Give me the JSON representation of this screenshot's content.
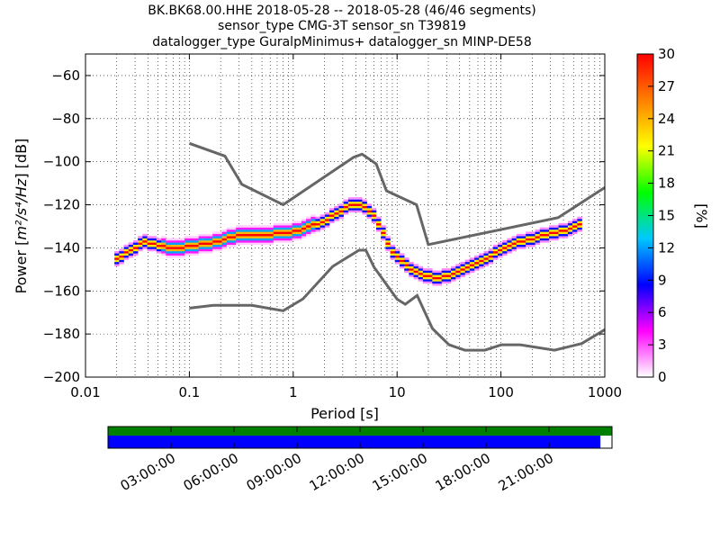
{
  "chart_data": {
    "type": "heatmap",
    "title_lines": [
      "BK.BK68.00.HHE   2018-05-28 -- 2018-05-28  (46/46 segments)",
      "sensor_type CMG-3T sensor_sn T39819",
      "datalogger_type GuralpMinimus+ datalogger_sn MINP-DE58"
    ],
    "xlabel_prefix": "Period [s]",
    "ylabel_prefix": "Power [",
    "ylabel_math": "m²/s⁴/Hz",
    "ylabel_suffix": "] [dB]",
    "x_scale": "log",
    "xlim": [
      0.01,
      1000
    ],
    "ylim": [
      -200,
      -50
    ],
    "x_ticks": [
      {
        "value": 0.01,
        "label": "0.01"
      },
      {
        "value": 0.1,
        "label": "0.1"
      },
      {
        "value": 1,
        "label": "1"
      },
      {
        "value": 10,
        "label": "10"
      },
      {
        "value": 100,
        "label": "100"
      },
      {
        "value": 1000,
        "label": "1000"
      }
    ],
    "y_ticks": [
      {
        "value": -60,
        "label": "−60"
      },
      {
        "value": -80,
        "label": "−80"
      },
      {
        "value": -100,
        "label": "−100"
      },
      {
        "value": -120,
        "label": "−120"
      },
      {
        "value": -140,
        "label": "−140"
      },
      {
        "value": -160,
        "label": "−160"
      },
      {
        "value": -180,
        "label": "−180"
      },
      {
        "value": -200,
        "label": "−200"
      }
    ],
    "grid": true,
    "colorbar": {
      "label": "[%]",
      "range": [
        0,
        30
      ],
      "ticks": [
        {
          "value": 0,
          "label": "0"
        },
        {
          "value": 3,
          "label": "3"
        },
        {
          "value": 6,
          "label": "6"
        },
        {
          "value": 9,
          "label": "9"
        },
        {
          "value": 12,
          "label": "12"
        },
        {
          "value": 15,
          "label": "15"
        },
        {
          "value": 18,
          "label": "18"
        },
        {
          "value": 21,
          "label": "21"
        },
        {
          "value": 24,
          "label": "24"
        },
        {
          "value": 27,
          "label": "27"
        },
        {
          "value": 30,
          "label": "30"
        }
      ],
      "colors": [
        "#ffffff",
        "#ff00ff",
        "#0000ff",
        "#00c8ff",
        "#00ff00",
        "#ffff00",
        "#ff8000",
        "#ff0000"
      ]
    },
    "nhnm": {
      "period": [
        0.1,
        0.22,
        0.32,
        0.8,
        3.8,
        4.6,
        6.3,
        7.9,
        15.4,
        20,
        354.8,
        1000
      ],
      "power": [
        -91.5,
        -97.4,
        -110.5,
        -120,
        -98,
        -96.5,
        -101,
        -113.5,
        -120,
        -138.5,
        -126,
        -112
      ]
    },
    "nlnm": {
      "period": [
        0.1,
        0.17,
        0.4,
        0.8,
        1.24,
        2.4,
        4.3,
        5,
        6,
        10,
        12,
        15.6,
        21.9,
        31.6,
        45,
        70,
        101,
        154,
        328,
        600,
        1000
      ],
      "power": [
        -168,
        -166.7,
        -166.7,
        -169.2,
        -163.7,
        -148.6,
        -141.1,
        -141.1,
        -149,
        -163.8,
        -166.2,
        -162.1,
        -177.5,
        -185,
        -187.5,
        -187.5,
        -185,
        -185,
        -187.5,
        -184.4,
        -178
      ]
    },
    "density_points": [
      {
        "period": 0.019,
        "power": -145
      },
      {
        "period": 0.022,
        "power": -143
      },
      {
        "period": 0.026,
        "power": -141
      },
      {
        "period": 0.03,
        "power": -139
      },
      {
        "period": 0.034,
        "power": -137
      },
      {
        "period": 0.04,
        "power": -138
      },
      {
        "period": 0.048,
        "power": -139
      },
      {
        "period": 0.06,
        "power": -140
      },
      {
        "period": 0.08,
        "power": -140
      },
      {
        "period": 0.1,
        "power": -139
      },
      {
        "period": 0.15,
        "power": -138
      },
      {
        "period": 0.2,
        "power": -136
      },
      {
        "period": 0.3,
        "power": -134
      },
      {
        "period": 0.5,
        "power": -134
      },
      {
        "period": 0.8,
        "power": -133
      },
      {
        "period": 1.2,
        "power": -131
      },
      {
        "period": 1.8,
        "power": -128
      },
      {
        "period": 2.5,
        "power": -124
      },
      {
        "period": 3.3,
        "power": -120
      },
      {
        "period": 4.2,
        "power": -120
      },
      {
        "period": 5.5,
        "power": -124
      },
      {
        "period": 6.5,
        "power": -130
      },
      {
        "period": 8,
        "power": -140
      },
      {
        "period": 10,
        "power": -145
      },
      {
        "period": 13,
        "power": -150
      },
      {
        "period": 17,
        "power": -153
      },
      {
        "period": 23,
        "power": -154
      },
      {
        "period": 30,
        "power": -153
      },
      {
        "period": 40,
        "power": -150
      },
      {
        "period": 55,
        "power": -147
      },
      {
        "period": 75,
        "power": -144
      },
      {
        "period": 100,
        "power": -140
      },
      {
        "period": 150,
        "power": -137
      },
      {
        "period": 250,
        "power": -134
      },
      {
        "period": 400,
        "power": -132
      },
      {
        "period": 600,
        "power": -128
      }
    ],
    "timeline": {
      "tick_labels": [
        "03:00:00",
        "06:00:00",
        "09:00:00",
        "12:00:00",
        "15:00:00",
        "18:00:00",
        "21:00:00"
      ],
      "coverage_fraction": 0.977,
      "colors": {
        "top": "#008000",
        "bottom": "#0000ff"
      }
    }
  }
}
